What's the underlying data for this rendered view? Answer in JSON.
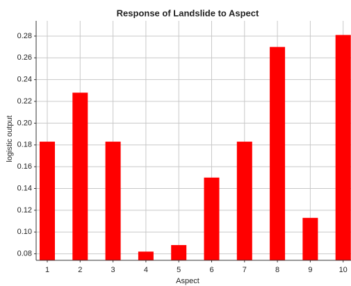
{
  "chart_data": {
    "type": "bar",
    "title": "Response of Landslide to Aspect",
    "x_label": "Aspect",
    "y_label": "logistic output",
    "categories": [
      "1",
      "2",
      "3",
      "4",
      "5",
      "6",
      "7",
      "8",
      "9",
      "10"
    ],
    "values": [
      0.183,
      0.228,
      0.183,
      0.082,
      0.088,
      0.15,
      0.183,
      0.27,
      0.113,
      0.281
    ],
    "color": "#ff0000",
    "ylim": [
      0.074,
      0.294
    ],
    "yticks": [
      0.08,
      {
        "value": 0.1,
        "label": "0.10"
      },
      0.12,
      0.14,
      0.16,
      0.18,
      {
        "value": 0.2,
        "label": "0.20"
      },
      0.22,
      0.24,
      0.26,
      0.28
    ],
    "grid": true
  }
}
